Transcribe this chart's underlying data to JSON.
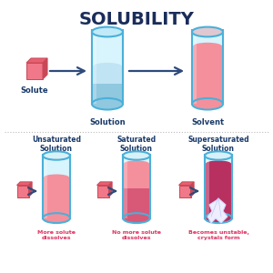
{
  "title": "SOLUBILITY",
  "title_fontsize": 14,
  "title_color": "#1a2d5a",
  "background_color": "#ffffff",
  "top_row": {
    "solute_label": "Solute",
    "solution_label": "Solution",
    "solvent_label": "Solvent"
  },
  "bottom_row": {
    "labels": [
      "Unsaturated\nSolution",
      "Saturated\nSolution",
      "Supersaturated\nSolution"
    ],
    "sublabels": [
      "More solute\ndissolves",
      "No more solute\ndissolves",
      "Becomes unstable,\ncrystals form"
    ]
  },
  "colors": {
    "tube_border": "#4ab0d8",
    "tube_glass": "#d8f4fc",
    "tube_glass_dark": "#b0ddf0",
    "tube_top_blue": "#c0eaf8",
    "tube_top_pink": "#e8c0cc",
    "blue_liquid": "#90c8e0",
    "blue_liquid_light": "#c0e4f4",
    "pink_liquid_light": "#f4909c",
    "pink_liquid_mid": "#d85878",
    "pink_liquid_dark": "#b83060",
    "cube_pink_face": "#f07888",
    "cube_pink_top": "#e86070",
    "cube_pink_side": "#c84858",
    "arrow_color": "#2d4a7a",
    "label_color": "#1a3a6a",
    "sublabel_color": "#e03060",
    "divider_color": "#bbbbbb"
  }
}
